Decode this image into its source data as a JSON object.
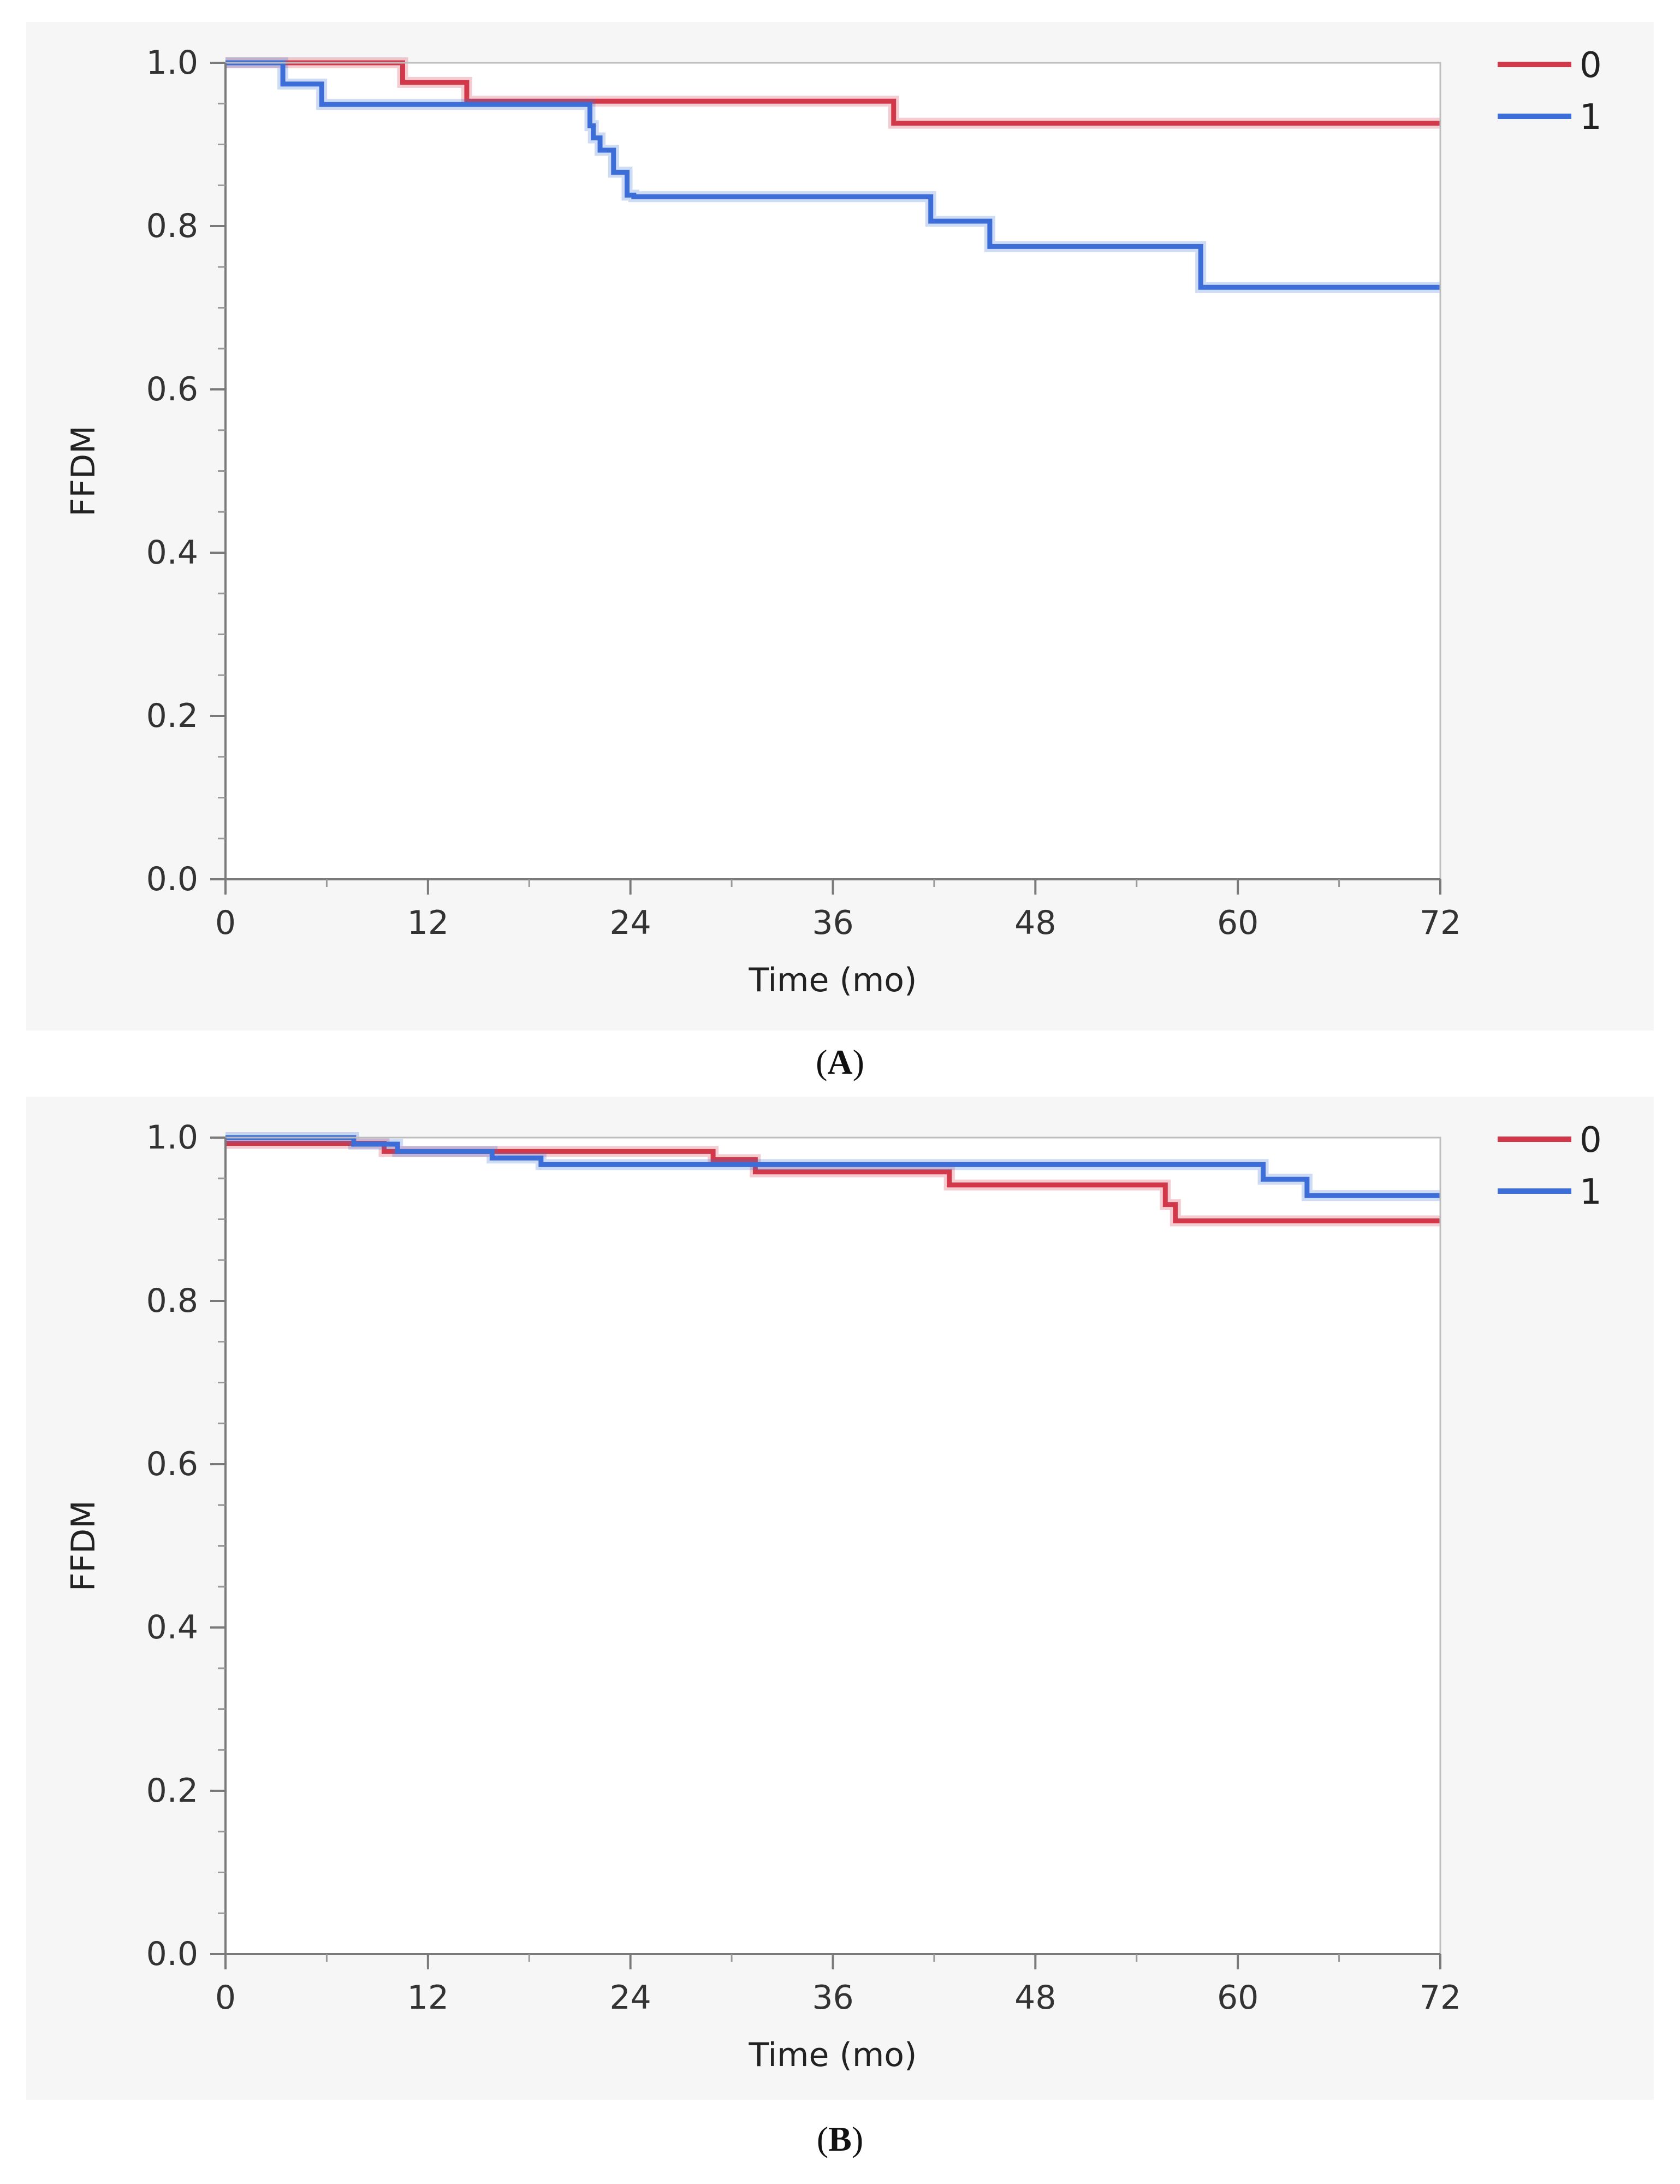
{
  "chart_data": [
    {
      "type": "line",
      "panel_label": "A",
      "xlabel": "Time (mo)",
      "ylabel": "FFDM",
      "xlim": [
        0,
        72
      ],
      "ylim": [
        0,
        1
      ],
      "x_ticks": [
        "0",
        "12",
        "24",
        "36",
        "48",
        "60",
        "72"
      ],
      "y_ticks": [
        "0.0",
        "0.2",
        "0.4",
        "0.6",
        "0.8",
        "1.0"
      ],
      "legend_position": "top-right",
      "series": [
        {
          "name": "0",
          "color": "#d1394a",
          "x": [
            0,
            10.5,
            14.3,
            39.6,
            72
          ],
          "y": [
            1.0,
            0.976,
            0.953,
            0.926,
            0.926
          ]
        },
        {
          "name": "1",
          "color": "#3d6ed8",
          "x": [
            0,
            3.4,
            5.7,
            21.6,
            21.8,
            22.2,
            23.0,
            23.8,
            24.2,
            41.8,
            45.3,
            57.8,
            72
          ],
          "y": [
            1.0,
            0.974,
            0.949,
            0.923,
            0.908,
            0.893,
            0.866,
            0.838,
            0.836,
            0.806,
            0.775,
            0.725,
            0.725
          ]
        }
      ]
    },
    {
      "type": "line",
      "panel_label": "B",
      "xlabel": "Time (mo)",
      "ylabel": "FFDM",
      "xlim": [
        0,
        72
      ],
      "ylim": [
        0,
        1
      ],
      "x_ticks": [
        "0",
        "12",
        "24",
        "36",
        "48",
        "60",
        "72"
      ],
      "y_ticks": [
        "0.0",
        "0.2",
        "0.4",
        "0.6",
        "0.8",
        "1.0"
      ],
      "legend_position": "top-right",
      "series": [
        {
          "name": "0",
          "color": "#d1394a",
          "x": [
            0,
            9.4,
            28.9,
            31.4,
            42.9,
            55.7,
            56.3,
            72
          ],
          "y": [
            0.993,
            0.983,
            0.973,
            0.958,
            0.942,
            0.918,
            0.898,
            0.898
          ]
        },
        {
          "name": "1",
          "color": "#3d6ed8",
          "x": [
            0,
            7.6,
            10.2,
            15.8,
            18.7,
            61.5,
            64.1,
            72
          ],
          "y": [
            1.0,
            0.992,
            0.983,
            0.975,
            0.967,
            0.949,
            0.929,
            0.929
          ]
        }
      ]
    }
  ]
}
